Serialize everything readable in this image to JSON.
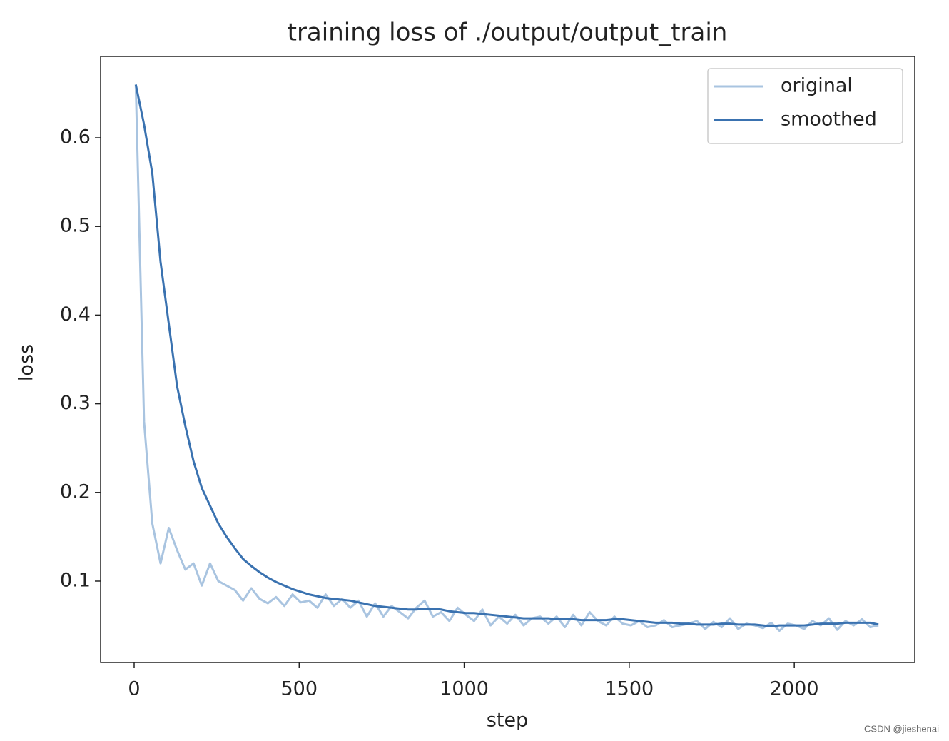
{
  "chart_data": {
    "type": "line",
    "title": "training loss of ./output/output_train",
    "x_label": "step",
    "y_label": "loss",
    "x": [
      5,
      30,
      55,
      80,
      105,
      130,
      155,
      180,
      205,
      230,
      255,
      280,
      305,
      330,
      355,
      380,
      405,
      430,
      455,
      480,
      505,
      530,
      555,
      580,
      605,
      630,
      655,
      680,
      705,
      730,
      755,
      780,
      805,
      830,
      855,
      880,
      905,
      930,
      955,
      980,
      1005,
      1030,
      1055,
      1080,
      1105,
      1130,
      1155,
      1180,
      1205,
      1230,
      1255,
      1280,
      1305,
      1330,
      1355,
      1380,
      1405,
      1430,
      1455,
      1480,
      1505,
      1530,
      1555,
      1580,
      1605,
      1630,
      1655,
      1680,
      1705,
      1730,
      1755,
      1780,
      1805,
      1830,
      1855,
      1880,
      1905,
      1930,
      1955,
      1980,
      2005,
      2030,
      2055,
      2080,
      2105,
      2130,
      2155,
      2180,
      2205,
      2230,
      2255
    ],
    "series": [
      {
        "name": "original",
        "color": "#a9c4e0",
        "values": [
          0.66,
          0.28,
          0.165,
          0.12,
          0.16,
          0.135,
          0.113,
          0.12,
          0.095,
          0.12,
          0.1,
          0.095,
          0.09,
          0.078,
          0.092,
          0.08,
          0.075,
          0.082,
          0.072,
          0.085,
          0.076,
          0.078,
          0.07,
          0.085,
          0.072,
          0.08,
          0.07,
          0.078,
          0.06,
          0.075,
          0.06,
          0.072,
          0.065,
          0.058,
          0.07,
          0.078,
          0.06,
          0.065,
          0.055,
          0.07,
          0.062,
          0.055,
          0.068,
          0.05,
          0.06,
          0.052,
          0.062,
          0.05,
          0.058,
          0.06,
          0.052,
          0.06,
          0.048,
          0.062,
          0.05,
          0.065,
          0.055,
          0.05,
          0.06,
          0.052,
          0.05,
          0.055,
          0.048,
          0.05,
          0.056,
          0.048,
          0.05,
          0.052,
          0.055,
          0.046,
          0.054,
          0.048,
          0.058,
          0.046,
          0.052,
          0.05,
          0.047,
          0.053,
          0.044,
          0.052,
          0.05,
          0.046,
          0.055,
          0.05,
          0.058,
          0.045,
          0.055,
          0.05,
          0.057,
          0.048,
          0.05
        ]
      },
      {
        "name": "smoothed",
        "color": "#3a72b0",
        "values": [
          0.66,
          0.615,
          0.56,
          0.46,
          0.39,
          0.32,
          0.275,
          0.235,
          0.205,
          0.185,
          0.165,
          0.15,
          0.137,
          0.125,
          0.117,
          0.11,
          0.104,
          0.099,
          0.095,
          0.091,
          0.088,
          0.085,
          0.083,
          0.081,
          0.08,
          0.079,
          0.078,
          0.076,
          0.074,
          0.072,
          0.071,
          0.07,
          0.069,
          0.068,
          0.068,
          0.069,
          0.069,
          0.068,
          0.066,
          0.065,
          0.064,
          0.064,
          0.063,
          0.062,
          0.061,
          0.06,
          0.059,
          0.058,
          0.058,
          0.058,
          0.058,
          0.057,
          0.057,
          0.057,
          0.056,
          0.056,
          0.056,
          0.056,
          0.057,
          0.057,
          0.056,
          0.055,
          0.054,
          0.053,
          0.053,
          0.053,
          0.052,
          0.052,
          0.051,
          0.051,
          0.051,
          0.052,
          0.052,
          0.051,
          0.051,
          0.051,
          0.05,
          0.049,
          0.05,
          0.05,
          0.05,
          0.05,
          0.051,
          0.052,
          0.052,
          0.052,
          0.053,
          0.053,
          0.053,
          0.053,
          0.051
        ]
      }
    ],
    "xlim": [
      -101.6,
      2365
    ],
    "ylim": [
      0.0082,
      0.6918
    ],
    "xticks": [
      0,
      500,
      1000,
      1500,
      2000
    ],
    "yticks": [
      0.1,
      0.2,
      0.3,
      0.4,
      0.5,
      0.6
    ],
    "legend": "upper right",
    "watermark": "CSDN @jieshenai"
  }
}
